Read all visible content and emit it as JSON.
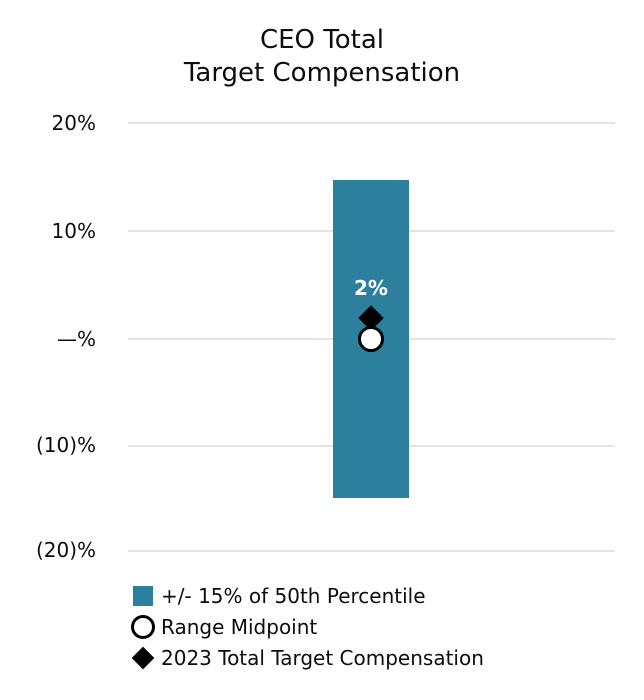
{
  "chart_data": {
    "type": "bar",
    "title": "CEO Total Target Compensation",
    "title_lines": [
      "CEO Total",
      "Target Compensation"
    ],
    "xlabel": "",
    "ylabel": "",
    "ylim": [
      -20,
      20
    ],
    "grid": true,
    "legend_position": "bottom-left",
    "y_axis": {
      "ticks": [
        20,
        10,
        0,
        -10,
        -20
      ],
      "tick_labels": [
        "20%",
        "10%",
        "—%",
        "(10)%",
        "(20)%"
      ]
    },
    "categories": [
      "CEO Total Target Compensation"
    ],
    "series": [
      {
        "name": "+/- 15% of 50th Percentile",
        "type": "range_bar",
        "low": -15,
        "high": 15,
        "color": "#2d7f9e"
      },
      {
        "name": "Range Midpoint",
        "type": "marker_circle",
        "value": 0,
        "fill": "#ffffff",
        "stroke": "#000000"
      },
      {
        "name": "2023 Total Target Compensation",
        "type": "marker_diamond",
        "value": 2,
        "color": "#000000",
        "data_label": "2%",
        "data_label_color": "#ffffff"
      }
    ]
  },
  "legend": {
    "items": [
      {
        "swatch": "square",
        "color": "#2d7f9e",
        "label": "+/- 15% of 50th Percentile"
      },
      {
        "swatch": "circle-outline",
        "color": "#000000",
        "label": "Range Midpoint"
      },
      {
        "swatch": "diamond",
        "color": "#000000",
        "label": "2023 Total Target Compensation"
      }
    ]
  },
  "colors": {
    "bar_teal": "#2d7f9e",
    "gridline": "#e4e4e4",
    "text": "#0d0d0d",
    "data_label": "#ffffff"
  }
}
